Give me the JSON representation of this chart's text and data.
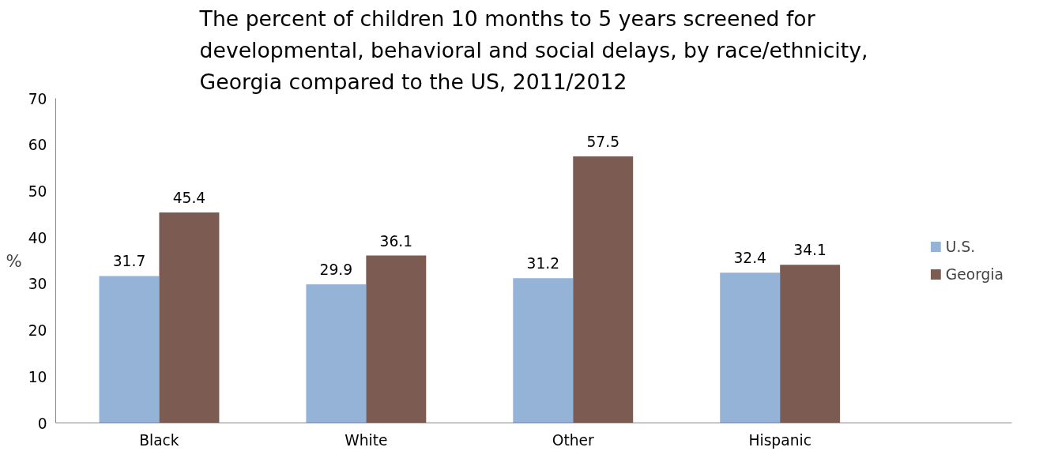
{
  "chart_data": {
    "type": "bar",
    "title": "The percent of children 10 months to 5 years screened for developmental, behavioral and social delays, by race/ethnicity, Georgia compared to the US, 2011/2012",
    "ylabel": "%",
    "categories": [
      "Black",
      "White",
      "Other",
      "Hispanic"
    ],
    "series": [
      {
        "name": "U.S.",
        "color": "#95b3d7",
        "values": [
          31.7,
          29.9,
          31.2,
          32.4
        ]
      },
      {
        "name": "Georgia",
        "color": "#7b5b52",
        "values": [
          45.4,
          36.1,
          57.5,
          34.1
        ]
      }
    ],
    "ylim": [
      0,
      70
    ],
    "yticks": [
      0,
      10,
      20,
      30,
      40,
      50,
      60,
      70
    ],
    "data_labels": true,
    "grid": false,
    "legend": "right"
  }
}
